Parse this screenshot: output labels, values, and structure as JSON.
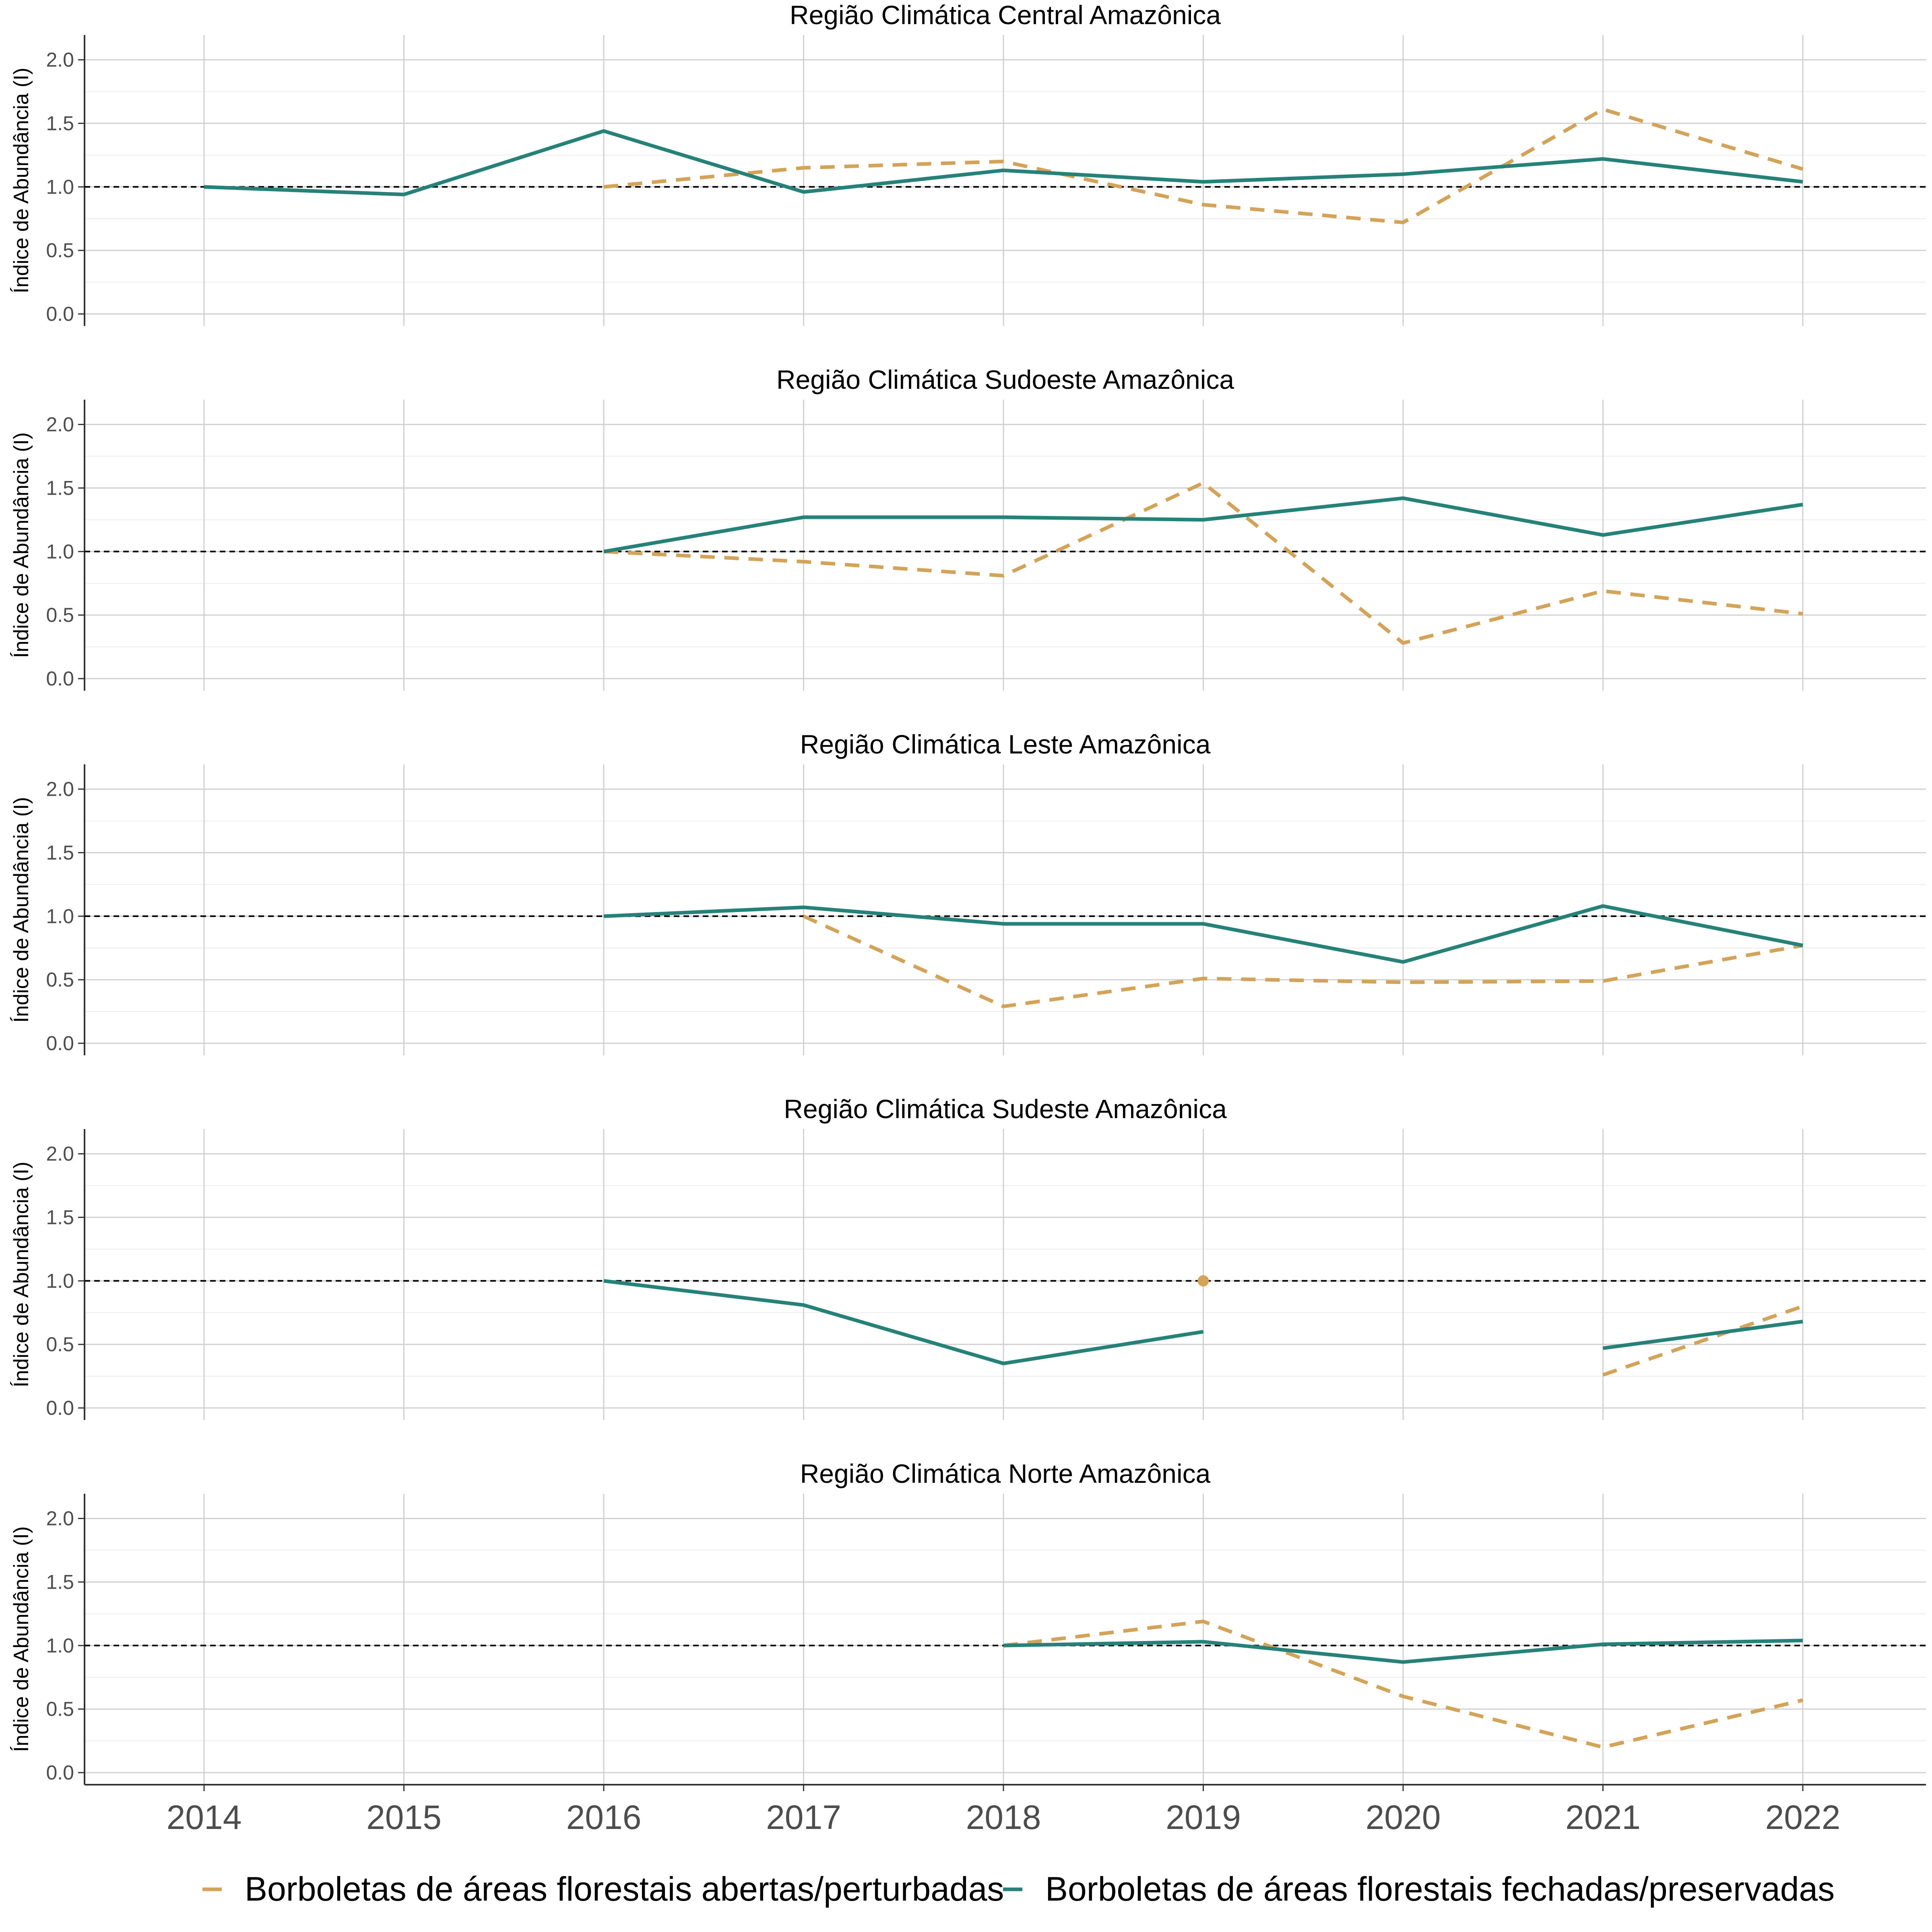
{
  "chart_data": {
    "type": "line",
    "ylabel": "Índice de Abundância (I)",
    "ylim": [
      0,
      2.1
    ],
    "yticks": [
      "0.0",
      "0.5",
      "1.0",
      "1.5",
      "2.0"
    ],
    "x": [
      2014,
      2015,
      2016,
      2017,
      2018,
      2019,
      2020,
      2021,
      2022
    ],
    "x_tick_labels": [
      "2014",
      "2015",
      "2016",
      "2017",
      "2018",
      "2019",
      "2020",
      "2021",
      "2022"
    ],
    "reference_line": 1.0,
    "grid": true,
    "legend": {
      "placement": "bottom",
      "entries": [
        {
          "label": "Borboletas de áreas florestais abertas/perturbadas",
          "color": "#D4A35A",
          "style": "dashed"
        },
        {
          "label": "Borboletas de áreas florestais fechadas/preservadas",
          "color": "#268278",
          "style": "solid"
        }
      ]
    },
    "panels": [
      {
        "title": "Região Climática Central Amazônica",
        "series": [
          {
            "name": "Borboletas de áreas florestais abertas/perturbadas",
            "values": [
              null,
              null,
              1.0,
              1.15,
              1.2,
              0.86,
              0.72,
              1.61,
              1.14
            ]
          },
          {
            "name": "Borboletas de áreas florestais fechadas/preservadas",
            "values": [
              1.0,
              0.94,
              1.44,
              0.96,
              1.13,
              1.04,
              1.1,
              1.22,
              1.04
            ]
          }
        ]
      },
      {
        "title": "Região Climática Sudoeste Amazônica",
        "series": [
          {
            "name": "Borboletas de áreas florestais abertas/perturbadas",
            "values": [
              null,
              null,
              1.0,
              0.92,
              0.81,
              1.54,
              0.28,
              0.69,
              0.51
            ]
          },
          {
            "name": "Borboletas de áreas florestais fechadas/preservadas",
            "values": [
              null,
              null,
              1.0,
              1.27,
              1.27,
              1.25,
              1.42,
              1.13,
              1.37
            ]
          }
        ]
      },
      {
        "title": "Região Climática Leste Amazônica",
        "series": [
          {
            "name": "Borboletas de áreas florestais abertas/perturbadas",
            "values": [
              null,
              null,
              null,
              1.0,
              0.29,
              0.51,
              0.48,
              0.49,
              0.77
            ]
          },
          {
            "name": "Borboletas de áreas florestais fechadas/preservadas",
            "values": [
              null,
              null,
              1.0,
              1.07,
              0.94,
              0.94,
              0.64,
              1.08,
              0.77
            ]
          }
        ]
      },
      {
        "title": "Região Climática Sudeste Amazônica",
        "series": [
          {
            "name": "Borboletas de áreas florestais abertas/perturbadas",
            "values": [
              null,
              null,
              null,
              null,
              null,
              1.0,
              null,
              0.26,
              0.8
            ]
          },
          {
            "name": "Borboletas de áreas florestais fechadas/preservadas",
            "values": [
              null,
              null,
              1.0,
              0.81,
              0.35,
              0.6,
              null,
              0.47,
              0.68
            ]
          }
        ]
      },
      {
        "title": "Região Climática Norte Amazônica",
        "series": [
          {
            "name": "Borboletas de áreas florestais abertas/perturbadas",
            "values": [
              null,
              null,
              null,
              null,
              1.0,
              1.19,
              0.6,
              0.2,
              0.57
            ]
          },
          {
            "name": "Borboletas de áreas florestais fechadas/preservadas",
            "values": [
              null,
              null,
              null,
              null,
              1.0,
              1.03,
              0.87,
              1.01,
              1.04
            ]
          }
        ]
      }
    ]
  }
}
